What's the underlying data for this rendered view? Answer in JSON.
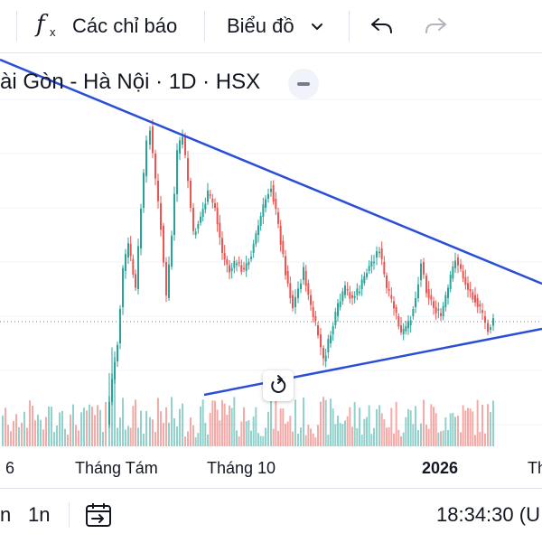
{
  "toolbar": {
    "indicators_icon": "function-fx-icon",
    "indicators_label": "Các chỉ báo",
    "chart_type_label": "Biểu đồ",
    "dropdown_icon": "chevron-down-icon",
    "undo_icon": "undo-arrow-icon",
    "redo_icon": "redo-arrow-icon"
  },
  "legend": {
    "title": "ài Gòn - Hà Nội · 1D · HSX",
    "collapse_icon": "minus-icon"
  },
  "chart": {
    "reset_icon": "reset-rotate-icon",
    "colors": {
      "up": "#26a69a",
      "down": "#ef5350",
      "trendline": "#2a4fd6",
      "price_line": "#787b86"
    },
    "time_axis": [
      {
        "label": "6",
        "bold": false
      },
      {
        "label": "Tháng Tám",
        "bold": false
      },
      {
        "label": "Tháng 10",
        "bold": false
      },
      {
        "label": "2026",
        "bold": true
      },
      {
        "label": "Th",
        "bold": false
      }
    ]
  },
  "bottom_bar": {
    "range_a": "n",
    "range_b": "1n",
    "goto_date_icon": "calendar-goto-icon",
    "time": "18:34:30 (U"
  }
}
